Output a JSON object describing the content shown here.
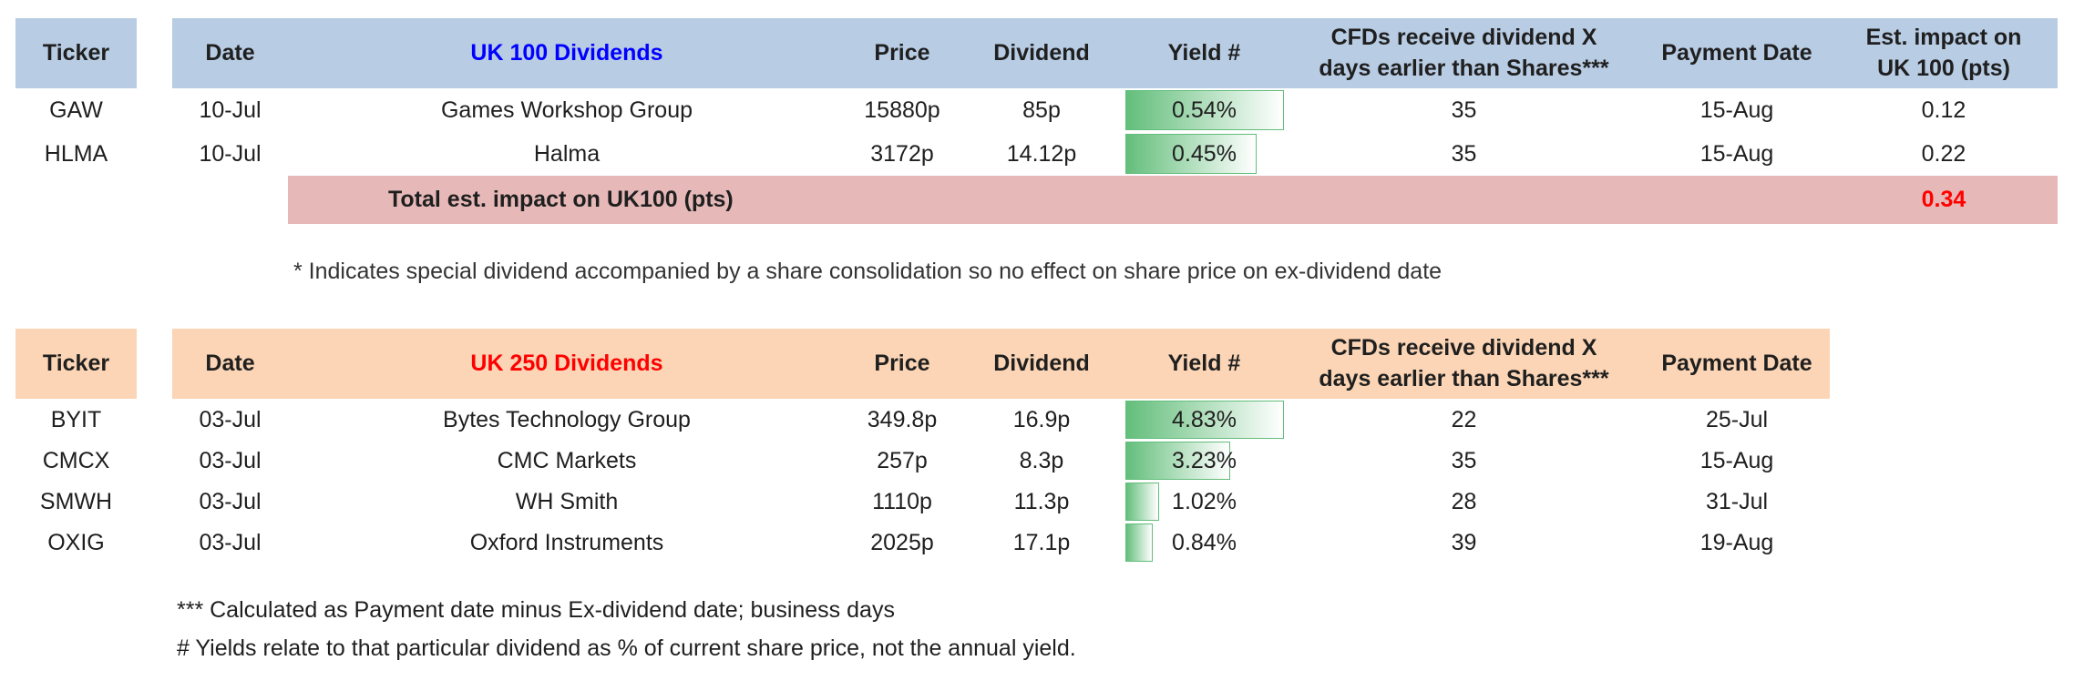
{
  "columns": {
    "ticker": "Ticker",
    "date": "Date",
    "price": "Price",
    "dividend": "Dividend",
    "yield": "Yield #",
    "cfd": "CFDs receive dividend X days earlier than Shares***",
    "payment": "Payment Date",
    "impact": "Est. impact on UK 100 (pts)"
  },
  "uk100": {
    "title": "UK 100 Dividends",
    "title_color": "#0000ff",
    "rows": [
      {
        "ticker": "GAW",
        "date": "10-Jul",
        "name": "Games Workshop Group",
        "price": "15880p",
        "dividend": "85p",
        "yield": "0.54%",
        "yield_fraction": 0.54,
        "cfd": "35",
        "payment": "15-Aug",
        "impact": "0.12"
      },
      {
        "ticker": "HLMA",
        "date": "10-Jul",
        "name": "Halma",
        "price": "3172p",
        "dividend": "14.12p",
        "yield": "0.45%",
        "yield_fraction": 0.45,
        "cfd": "35",
        "payment": "15-Aug",
        "impact": "0.22"
      }
    ],
    "total_label": "Total est. impact on UK100 (pts)",
    "total_value": "0.34",
    "total_color": "#ff0000",
    "footnote": "* Indicates special dividend accompanied by a share consolidation so no effect on share price on ex-dividend date"
  },
  "uk250": {
    "title": "UK 250 Dividends",
    "title_color": "#ff0000",
    "rows": [
      {
        "ticker": "BYIT",
        "date": "03-Jul",
        "name": "Bytes Technology Group",
        "price": "349.8p",
        "dividend": "16.9p",
        "yield": "4.83%",
        "yield_fraction": 4.83,
        "cfd": "22",
        "payment": "25-Jul"
      },
      {
        "ticker": "CMCX",
        "date": "03-Jul",
        "name": "CMC Markets",
        "price": "257p",
        "dividend": "8.3p",
        "yield": "3.23%",
        "yield_fraction": 3.23,
        "cfd": "35",
        "payment": "15-Aug"
      },
      {
        "ticker": "SMWH",
        "date": "03-Jul",
        "name": "WH Smith",
        "price": "1110p",
        "dividend": "11.3p",
        "yield": "1.02%",
        "yield_fraction": 1.02,
        "cfd": "28",
        "payment": "31-Jul"
      },
      {
        "ticker": "OXIG",
        "date": "03-Jul",
        "name": "Oxford Instruments",
        "price": "2025p",
        "dividend": "17.1p",
        "yield": "0.84%",
        "yield_fraction": 0.84,
        "cfd": "39",
        "payment": "19-Aug"
      }
    ]
  },
  "footnotes": {
    "line1": "*** Calculated as Payment date minus Ex-dividend date; business days",
    "line2": "# Yields relate to that particular dividend as % of current share price, not the annual yield."
  },
  "colors": {
    "uk100_header": "#b8cce4",
    "uk250_header": "#fbd5b5",
    "total_row": "#e6b9b8",
    "yield_bar": "#63be7b"
  }
}
